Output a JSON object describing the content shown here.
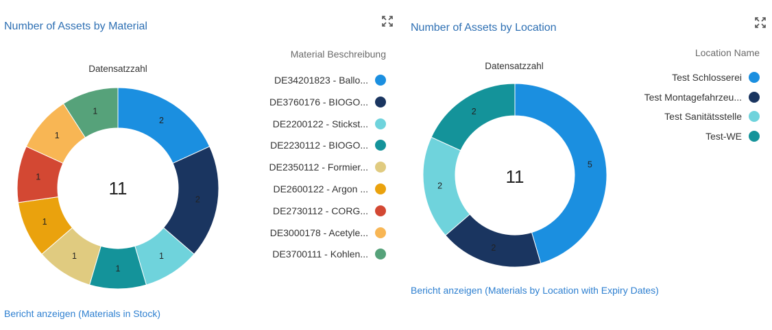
{
  "colors": {
    "title": "#2d6fb3",
    "link": "#2d7fd0"
  },
  "material_card": {
    "title": "Number of Assets by Material",
    "expand_icon": "expand-icon",
    "legend_title": "Material Beschreibung",
    "report_link": "Bericht anzeigen (Materials in Stock)"
  },
  "location_card": {
    "title": "Number of Assets by Location",
    "expand_icon": "expand-icon",
    "legend_title": "Location Name",
    "report_link": "Bericht anzeigen (Materials by Location with Expiry Dates)"
  },
  "chart_data": [
    {
      "type": "pie",
      "variant": "donut",
      "measure_label": "Datensatzzahl",
      "total": "11",
      "legend_title": "Material Beschreibung",
      "categories": [
        "DE34201823 - Ballo...",
        "DE3760176 - BIOGO...",
        "DE2200122 - Stickst...",
        "DE2230112 - BIOGO...",
        "DE2350112 - Formier...",
        "DE2600122 - Argon ...",
        "DE2730112 - CORG...",
        "DE3000178 - Acetyle...",
        "DE3700111 - Kohlen..."
      ],
      "values": [
        2,
        2,
        1,
        1,
        1,
        1,
        1,
        1,
        1
      ],
      "colors": [
        "#1b8fe0",
        "#1a3560",
        "#6fd3dc",
        "#14939a",
        "#e0cb80",
        "#eaa20d",
        "#d34833",
        "#f8b654",
        "#56a27a"
      ]
    },
    {
      "type": "pie",
      "variant": "donut",
      "measure_label": "Datensatzzahl",
      "total": "11",
      "legend_title": "Location Name",
      "categories": [
        "Test Schlosserei",
        "Test Montagefahrzeu...",
        "Test Sanitätsstelle",
        "Test-WE"
      ],
      "values": [
        5,
        2,
        2,
        2
      ],
      "colors": [
        "#1b8fe0",
        "#1a3560",
        "#6fd3dc",
        "#14939a"
      ]
    }
  ]
}
